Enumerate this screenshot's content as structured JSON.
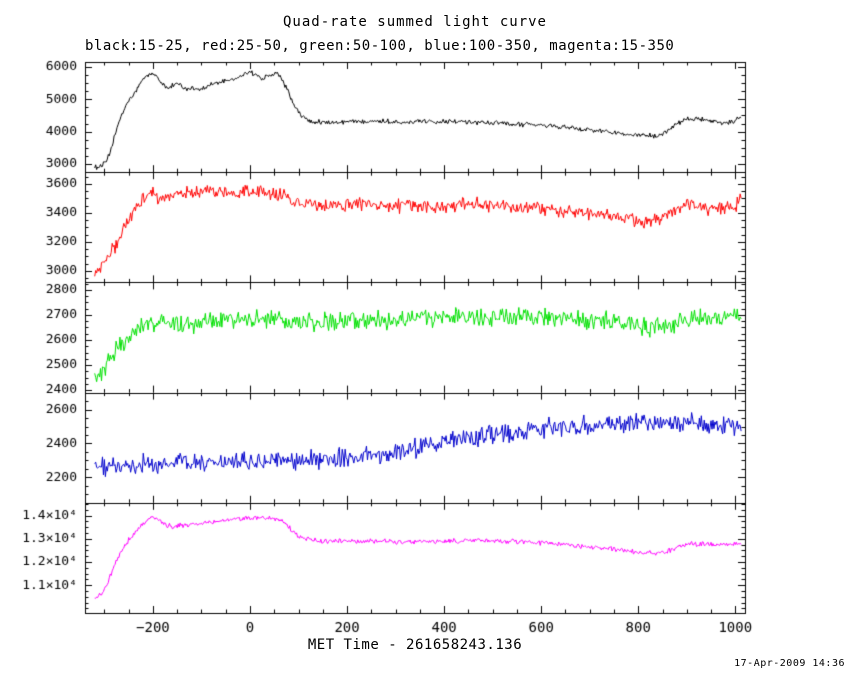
{
  "footer": {
    "timestamp": "17-Apr-2009 14:36"
  },
  "chart_data": {
    "type": "line",
    "title": "Quad-rate summed light curve",
    "subtitle": "black:15-25, red:25-50, green:50-100, blue:100-350, magenta:15-350",
    "xlabel": "MET Time - 261658243.136",
    "xlim": [
      -340,
      1020
    ],
    "x_tick_values": [
      -200,
      0,
      200,
      400,
      600,
      800,
      1000
    ],
    "x_tick_labels": [
      "−200",
      "0",
      "200",
      "400",
      "600",
      "800",
      "1000"
    ],
    "x_minor_step": 50,
    "x_start": -320,
    "x_end": 1012,
    "x_step": 2,
    "grid": false,
    "legend_position": "subtitle-text",
    "panels": [
      {
        "name": "black:15-25",
        "band": "15-25",
        "color": "#000000",
        "ylim": [
          2750,
          6150
        ],
        "ytick_values": [
          3000,
          4000,
          5000,
          6000
        ],
        "ytick_labels": [
          "3000",
          "4000",
          "5000",
          "6000"
        ],
        "y_minor_step": 250,
        "noise": 90,
        "keypoints": [
          [
            -318,
            2900
          ],
          [
            -305,
            2950
          ],
          [
            -295,
            3100
          ],
          [
            -285,
            3500
          ],
          [
            -275,
            4100
          ],
          [
            -265,
            4500
          ],
          [
            -255,
            4800
          ],
          [
            -245,
            5050
          ],
          [
            -235,
            5250
          ],
          [
            -225,
            5500
          ],
          [
            -215,
            5700
          ],
          [
            -205,
            5800
          ],
          [
            -195,
            5750
          ],
          [
            -185,
            5550
          ],
          [
            -175,
            5400
          ],
          [
            -165,
            5350
          ],
          [
            -155,
            5500
          ],
          [
            -145,
            5450
          ],
          [
            -130,
            5300
          ],
          [
            -115,
            5350
          ],
          [
            -100,
            5300
          ],
          [
            -85,
            5400
          ],
          [
            -70,
            5500
          ],
          [
            -55,
            5550
          ],
          [
            -40,
            5600
          ],
          [
            -25,
            5650
          ],
          [
            -10,
            5800
          ],
          [
            0,
            5850
          ],
          [
            10,
            5750
          ],
          [
            25,
            5650
          ],
          [
            40,
            5750
          ],
          [
            55,
            5800
          ],
          [
            65,
            5650
          ],
          [
            75,
            5350
          ],
          [
            85,
            5000
          ],
          [
            95,
            4700
          ],
          [
            105,
            4500
          ],
          [
            120,
            4350
          ],
          [
            140,
            4300
          ],
          [
            170,
            4280
          ],
          [
            200,
            4300
          ],
          [
            250,
            4350
          ],
          [
            300,
            4300
          ],
          [
            360,
            4320
          ],
          [
            420,
            4330
          ],
          [
            480,
            4280
          ],
          [
            540,
            4230
          ],
          [
            600,
            4200
          ],
          [
            660,
            4120
          ],
          [
            720,
            4020
          ],
          [
            770,
            3950
          ],
          [
            810,
            3880
          ],
          [
            840,
            3870
          ],
          [
            860,
            4000
          ],
          [
            880,
            4250
          ],
          [
            900,
            4380
          ],
          [
            925,
            4400
          ],
          [
            950,
            4300
          ],
          [
            975,
            4250
          ],
          [
            995,
            4300
          ],
          [
            1010,
            4450
          ]
        ]
      },
      {
        "name": "red:25-50",
        "band": "25-50",
        "color": "#ff0000",
        "ylim": [
          2920,
          3680
        ],
        "ytick_values": [
          3000,
          3200,
          3400,
          3600
        ],
        "ytick_labels": [
          "3000",
          "3200",
          "3400",
          "3600"
        ],
        "y_minor_step": 50,
        "noise": 58,
        "keypoints": [
          [
            -318,
            3000
          ],
          [
            -305,
            3030
          ],
          [
            -295,
            3080
          ],
          [
            -285,
            3130
          ],
          [
            -275,
            3180
          ],
          [
            -265,
            3250
          ],
          [
            -255,
            3320
          ],
          [
            -245,
            3380
          ],
          [
            -235,
            3430
          ],
          [
            -225,
            3480
          ],
          [
            -215,
            3520
          ],
          [
            -205,
            3545
          ],
          [
            -195,
            3520
          ],
          [
            -185,
            3490
          ],
          [
            -170,
            3510
          ],
          [
            -150,
            3530
          ],
          [
            -130,
            3540
          ],
          [
            -110,
            3530
          ],
          [
            -90,
            3545
          ],
          [
            -70,
            3540
          ],
          [
            -50,
            3535
          ],
          [
            -30,
            3530
          ],
          [
            -10,
            3545
          ],
          [
            10,
            3550
          ],
          [
            30,
            3540
          ],
          [
            50,
            3535
          ],
          [
            70,
            3520
          ],
          [
            90,
            3490
          ],
          [
            110,
            3465
          ],
          [
            140,
            3450
          ],
          [
            180,
            3460
          ],
          [
            220,
            3470
          ],
          [
            260,
            3455
          ],
          [
            300,
            3450
          ],
          [
            350,
            3445
          ],
          [
            400,
            3450
          ],
          [
            450,
            3460
          ],
          [
            500,
            3450
          ],
          [
            550,
            3440
          ],
          [
            600,
            3430
          ],
          [
            650,
            3415
          ],
          [
            700,
            3395
          ],
          [
            740,
            3380
          ],
          [
            780,
            3355
          ],
          [
            810,
            3340
          ],
          [
            840,
            3355
          ],
          [
            865,
            3400
          ],
          [
            885,
            3430
          ],
          [
            910,
            3480
          ],
          [
            920,
            3430
          ],
          [
            950,
            3420
          ],
          [
            975,
            3430
          ],
          [
            1000,
            3440
          ],
          [
            1010,
            3490
          ]
        ]
      },
      {
        "name": "green:50-100",
        "band": "50-100",
        "color": "#00e000",
        "ylim": [
          2390,
          2830
        ],
        "ytick_values": [
          2400,
          2500,
          2600,
          2700,
          2800
        ],
        "ytick_labels": [
          "2400",
          "2500",
          "2600",
          "2700",
          "2800"
        ],
        "y_minor_step": 25,
        "noise": 45,
        "keypoints": [
          [
            -318,
            2450
          ],
          [
            -305,
            2470
          ],
          [
            -295,
            2500
          ],
          [
            -285,
            2540
          ],
          [
            -275,
            2565
          ],
          [
            -265,
            2585
          ],
          [
            -255,
            2605
          ],
          [
            -245,
            2625
          ],
          [
            -230,
            2645
          ],
          [
            -215,
            2660
          ],
          [
            -200,
            2665
          ],
          [
            -180,
            2665
          ],
          [
            -160,
            2675
          ],
          [
            -140,
            2670
          ],
          [
            -120,
            2665
          ],
          [
            -100,
            2670
          ],
          [
            -80,
            2675
          ],
          [
            -60,
            2680
          ],
          [
            -40,
            2680
          ],
          [
            -20,
            2675
          ],
          [
            0,
            2680
          ],
          [
            30,
            2690
          ],
          [
            60,
            2685
          ],
          [
            100,
            2670
          ],
          [
            140,
            2670
          ],
          [
            180,
            2675
          ],
          [
            220,
            2680
          ],
          [
            260,
            2680
          ],
          [
            300,
            2680
          ],
          [
            350,
            2685
          ],
          [
            400,
            2690
          ],
          [
            450,
            2690
          ],
          [
            500,
            2690
          ],
          [
            550,
            2690
          ],
          [
            600,
            2690
          ],
          [
            650,
            2685
          ],
          [
            700,
            2680
          ],
          [
            750,
            2675
          ],
          [
            800,
            2660
          ],
          [
            830,
            2645
          ],
          [
            860,
            2660
          ],
          [
            900,
            2680
          ],
          [
            950,
            2690
          ],
          [
            1010,
            2695
          ]
        ]
      },
      {
        "name": "blue:100-350",
        "band": "100-350",
        "color": "#0000cc",
        "ylim": [
          2050,
          2700
        ],
        "ytick_values": [
          2200,
          2400,
          2600
        ],
        "ytick_labels": [
          "2200",
          "2400",
          "2600"
        ],
        "y_minor_step": 50,
        "noise": 68,
        "keypoints": [
          [
            -318,
            2255
          ],
          [
            -300,
            2265
          ],
          [
            -270,
            2275
          ],
          [
            -240,
            2280
          ],
          [
            -210,
            2275
          ],
          [
            -180,
            2280
          ],
          [
            -150,
            2280
          ],
          [
            -120,
            2285
          ],
          [
            -90,
            2285
          ],
          [
            -60,
            2280
          ],
          [
            -30,
            2285
          ],
          [
            0,
            2290
          ],
          [
            30,
            2295
          ],
          [
            60,
            2300
          ],
          [
            100,
            2300
          ],
          [
            140,
            2310
          ],
          [
            180,
            2315
          ],
          [
            220,
            2325
          ],
          [
            260,
            2340
          ],
          [
            300,
            2355
          ],
          [
            340,
            2375
          ],
          [
            380,
            2395
          ],
          [
            420,
            2415
          ],
          [
            460,
            2435
          ],
          [
            500,
            2455
          ],
          [
            540,
            2470
          ],
          [
            580,
            2485
          ],
          [
            620,
            2495
          ],
          [
            660,
            2505
          ],
          [
            700,
            2515
          ],
          [
            740,
            2520
          ],
          [
            780,
            2520
          ],
          [
            820,
            2515
          ],
          [
            860,
            2515
          ],
          [
            900,
            2520
          ],
          [
            950,
            2510
          ],
          [
            1010,
            2505
          ]
        ]
      },
      {
        "name": "magenta:15-350",
        "band": "15-350",
        "color": "#ff00ff",
        "ylim": [
          9800,
          14550
        ],
        "ytick_values": [
          11000,
          12000,
          13000,
          14000
        ],
        "ytick_labels": [
          "1.1×10⁴",
          "1.2×10⁴",
          "1.3×10⁴",
          "1.4×10⁴"
        ],
        "y_minor_step": 250,
        "noise": 130,
        "keypoints": [
          [
            -318,
            10450
          ],
          [
            -308,
            10600
          ],
          [
            -298,
            10900
          ],
          [
            -288,
            11400
          ],
          [
            -278,
            11900
          ],
          [
            -268,
            12350
          ],
          [
            -258,
            12700
          ],
          [
            -248,
            13000
          ],
          [
            -238,
            13250
          ],
          [
            -228,
            13450
          ],
          [
            -218,
            13650
          ],
          [
            -208,
            13850
          ],
          [
            -200,
            13950
          ],
          [
            -192,
            13900
          ],
          [
            -184,
            13750
          ],
          [
            -172,
            13600
          ],
          [
            -160,
            13500
          ],
          [
            -148,
            13550
          ],
          [
            -136,
            13600
          ],
          [
            -124,
            13600
          ],
          [
            -112,
            13650
          ],
          [
            -100,
            13680
          ],
          [
            -85,
            13700
          ],
          [
            -70,
            13720
          ],
          [
            -55,
            13760
          ],
          [
            -40,
            13800
          ],
          [
            -25,
            13850
          ],
          [
            -10,
            13900
          ],
          [
            5,
            13920
          ],
          [
            20,
            13900
          ],
          [
            35,
            13900
          ],
          [
            50,
            13870
          ],
          [
            62,
            13800
          ],
          [
            72,
            13650
          ],
          [
            82,
            13450
          ],
          [
            92,
            13250
          ],
          [
            102,
            13100
          ],
          [
            115,
            13000
          ],
          [
            130,
            12950
          ],
          [
            150,
            12900
          ],
          [
            180,
            12880
          ],
          [
            220,
            12900
          ],
          [
            260,
            12900
          ],
          [
            300,
            12870
          ],
          [
            350,
            12870
          ],
          [
            400,
            12900
          ],
          [
            450,
            12920
          ],
          [
            500,
            12900
          ],
          [
            550,
            12870
          ],
          [
            600,
            12820
          ],
          [
            650,
            12750
          ],
          [
            700,
            12650
          ],
          [
            740,
            12570
          ],
          [
            780,
            12480
          ],
          [
            810,
            12400
          ],
          [
            835,
            12360
          ],
          [
            860,
            12450
          ],
          [
            880,
            12650
          ],
          [
            900,
            12780
          ],
          [
            930,
            12780
          ],
          [
            960,
            12730
          ],
          [
            990,
            12760
          ],
          [
            1010,
            12820
          ]
        ]
      }
    ]
  }
}
